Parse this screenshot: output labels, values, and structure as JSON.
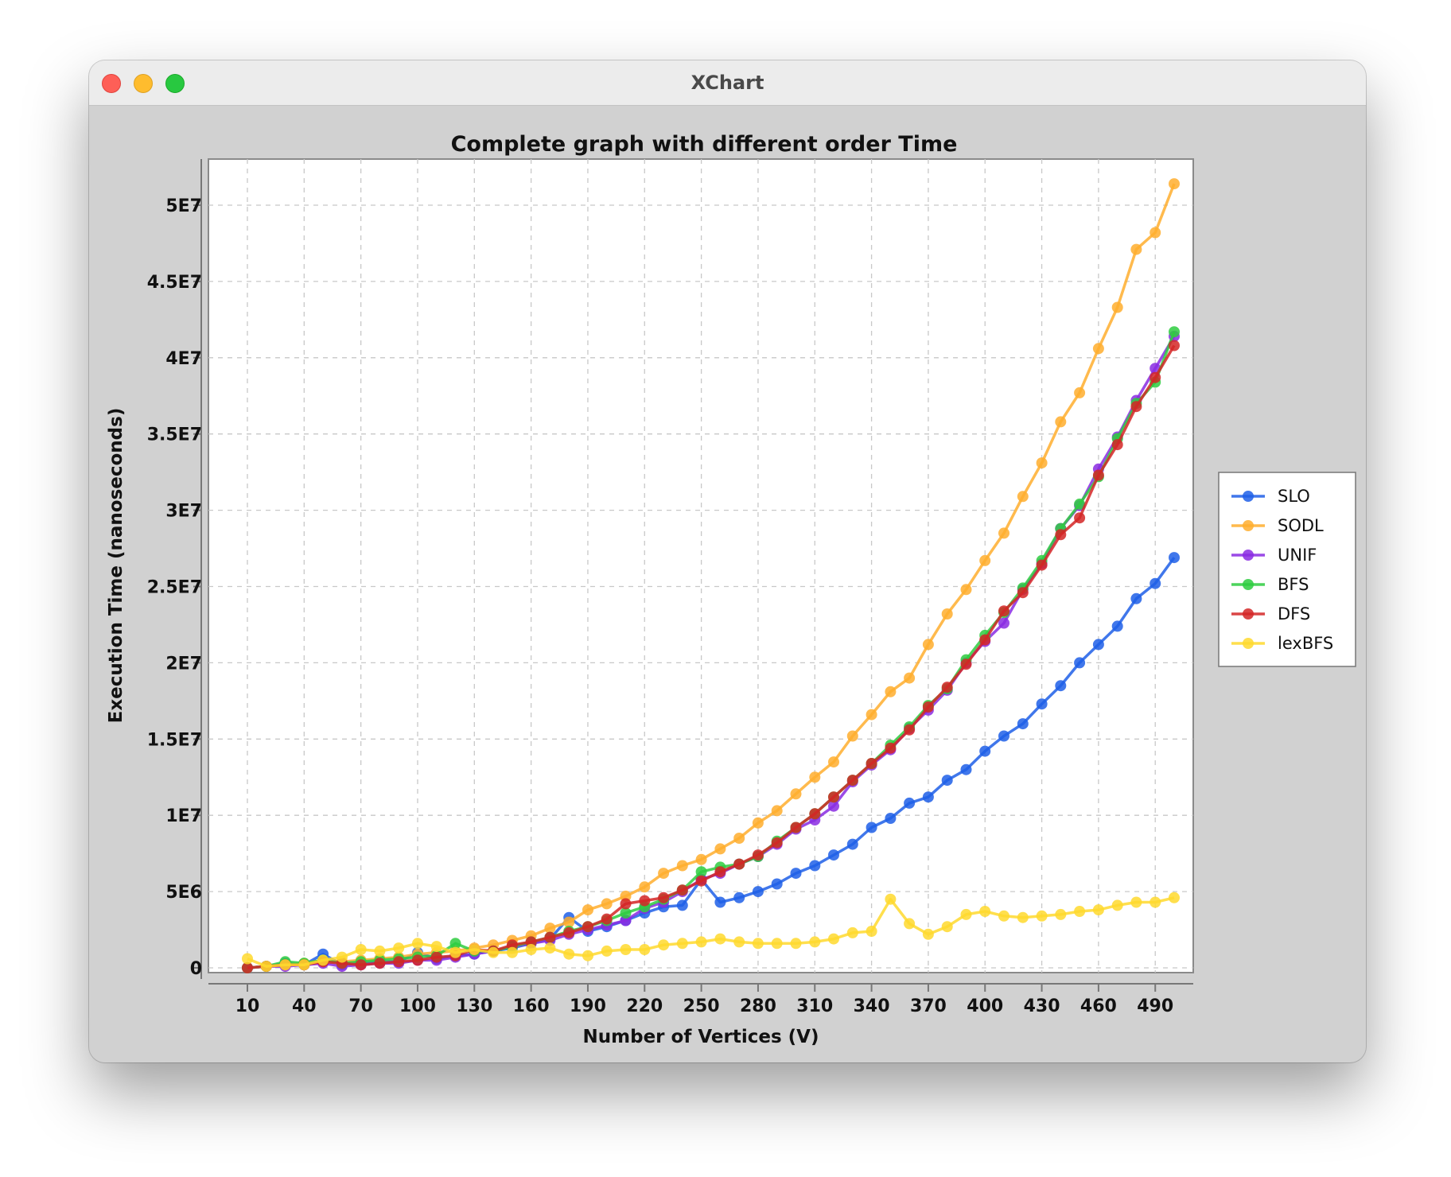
{
  "window": {
    "title": "XChart"
  },
  "chart_data": {
    "type": "line",
    "title": "Complete graph with different order Time",
    "xlabel": "Number of Vertices (V)",
    "ylabel": "Execution Time (nanoseconds)",
    "xlim": [
      -5,
      525
    ],
    "ylim": [
      -1000000,
      54000000
    ],
    "x_ticks": [
      10,
      40,
      70,
      100,
      130,
      160,
      190,
      220,
      250,
      280,
      310,
      340,
      370,
      400,
      430,
      460,
      490
    ],
    "x_tick_labels": [
      "10",
      "40",
      "70",
      "100",
      "130",
      "160",
      "190",
      "220",
      "250",
      "280",
      "310",
      "340",
      "370",
      "400",
      "430",
      "460",
      "490"
    ],
    "y_ticks": [
      0,
      5000000,
      10000000,
      15000000,
      20000000,
      25000000,
      30000000,
      35000000,
      40000000,
      45000000,
      50000000
    ],
    "y_tick_labels": [
      "0",
      "5E6",
      "1E7",
      "1.5E7",
      "2E7",
      "2.5E7",
      "3E7",
      "3.5E7",
      "4E7",
      "4.5E7",
      "5E7"
    ],
    "grid": true,
    "legend_position": "outside-right",
    "x": [
      10,
      20,
      30,
      40,
      50,
      60,
      70,
      80,
      90,
      100,
      110,
      120,
      130,
      140,
      150,
      160,
      170,
      180,
      190,
      200,
      210,
      220,
      230,
      240,
      250,
      260,
      270,
      280,
      290,
      300,
      310,
      320,
      330,
      340,
      350,
      360,
      370,
      380,
      390,
      400,
      410,
      420,
      430,
      440,
      450,
      460,
      470,
      480,
      490,
      500
    ],
    "series": [
      {
        "name": "SLO",
        "color": "#1f5fe8",
        "values": [
          0,
          100000,
          300000,
          200000,
          900000,
          200000,
          300000,
          400000,
          400000,
          1000000,
          600000,
          800000,
          900000,
          1100000,
          1300000,
          1600000,
          1900000,
          3300000,
          2400000,
          2700000,
          3100000,
          3600000,
          4000000,
          4100000,
          5800000,
          4300000,
          4600000,
          5000000,
          5500000,
          6200000,
          6700000,
          7400000,
          8100000,
          9200000,
          9800000,
          10800000,
          11200000,
          12300000,
          13000000,
          14200000,
          15200000,
          16000000,
          17300000,
          18500000,
          20000000,
          21200000,
          22400000,
          24200000,
          25200000,
          26900000
        ]
      },
      {
        "name": "SODL",
        "color": "#ffae2e",
        "values": [
          0,
          100000,
          200000,
          300000,
          500000,
          400000,
          500000,
          600000,
          700000,
          900000,
          1000000,
          1100000,
          1300000,
          1500000,
          1800000,
          2100000,
          2600000,
          3000000,
          3800000,
          4200000,
          4700000,
          5300000,
          6200000,
          6700000,
          7100000,
          7800000,
          8500000,
          9500000,
          10300000,
          11400000,
          12500000,
          13500000,
          15200000,
          16600000,
          18100000,
          19000000,
          21200000,
          23200000,
          24800000,
          26700000,
          28500000,
          30900000,
          33100000,
          35800000,
          37700000,
          40600000,
          43300000,
          47100000,
          48200000,
          51400000
        ]
      },
      {
        "name": "UNIF",
        "color": "#8a2be2",
        "values": [
          0,
          100000,
          100000,
          200000,
          300000,
          100000,
          200000,
          300000,
          300000,
          500000,
          500000,
          700000,
          900000,
          1100000,
          1400000,
          1600000,
          1800000,
          2200000,
          2500000,
          2800000,
          3100000,
          3900000,
          4300000,
          5000000,
          5800000,
          6200000,
          6800000,
          7300000,
          8100000,
          9100000,
          9700000,
          10600000,
          12200000,
          13300000,
          14300000,
          15700000,
          16900000,
          18200000,
          20000000,
          21400000,
          22600000,
          24800000,
          26500000,
          28800000,
          30300000,
          32700000,
          34800000,
          37200000,
          39300000,
          41400000
        ]
      },
      {
        "name": "BFS",
        "color": "#2ecc40",
        "values": [
          0,
          100000,
          400000,
          300000,
          500000,
          300000,
          400000,
          500000,
          600000,
          700000,
          800000,
          1600000,
          1100000,
          1100000,
          1400000,
          1700000,
          2000000,
          2400000,
          2700000,
          3100000,
          3600000,
          4000000,
          4500000,
          5100000,
          6300000,
          6600000,
          6800000,
          7300000,
          8300000,
          9200000,
          10100000,
          11200000,
          12300000,
          13400000,
          14600000,
          15800000,
          17200000,
          18300000,
          20200000,
          21800000,
          23300000,
          24900000,
          26700000,
          28800000,
          30400000,
          32200000,
          34700000,
          37000000,
          38400000,
          41700000
        ]
      },
      {
        "name": "DFS",
        "color": "#d42626",
        "values": [
          0,
          100000,
          200000,
          200000,
          400000,
          300000,
          200000,
          300000,
          400000,
          500000,
          700000,
          800000,
          1200000,
          1100000,
          1500000,
          1700000,
          2000000,
          2300000,
          2700000,
          3200000,
          4200000,
          4400000,
          4600000,
          5100000,
          5700000,
          6300000,
          6800000,
          7400000,
          8200000,
          9200000,
          10100000,
          11200000,
          12300000,
          13400000,
          14400000,
          15600000,
          17100000,
          18400000,
          19900000,
          21500000,
          23400000,
          24600000,
          26400000,
          28400000,
          29500000,
          32300000,
          34300000,
          36800000,
          38700000,
          40800000
        ]
      },
      {
        "name": "lexBFS",
        "color": "#ffd92e",
        "values": [
          600000,
          100000,
          200000,
          200000,
          500000,
          700000,
          1200000,
          1100000,
          1300000,
          1600000,
          1400000,
          1000000,
          1200000,
          1000000,
          1000000,
          1200000,
          1300000,
          900000,
          800000,
          1100000,
          1200000,
          1200000,
          1500000,
          1600000,
          1700000,
          1900000,
          1700000,
          1600000,
          1600000,
          1600000,
          1700000,
          1900000,
          2300000,
          2400000,
          4500000,
          2900000,
          2200000,
          2700000,
          3500000,
          3700000,
          3400000,
          3300000,
          3400000,
          3500000,
          3700000,
          3800000,
          4100000,
          4300000,
          4300000,
          4600000
        ]
      }
    ]
  }
}
